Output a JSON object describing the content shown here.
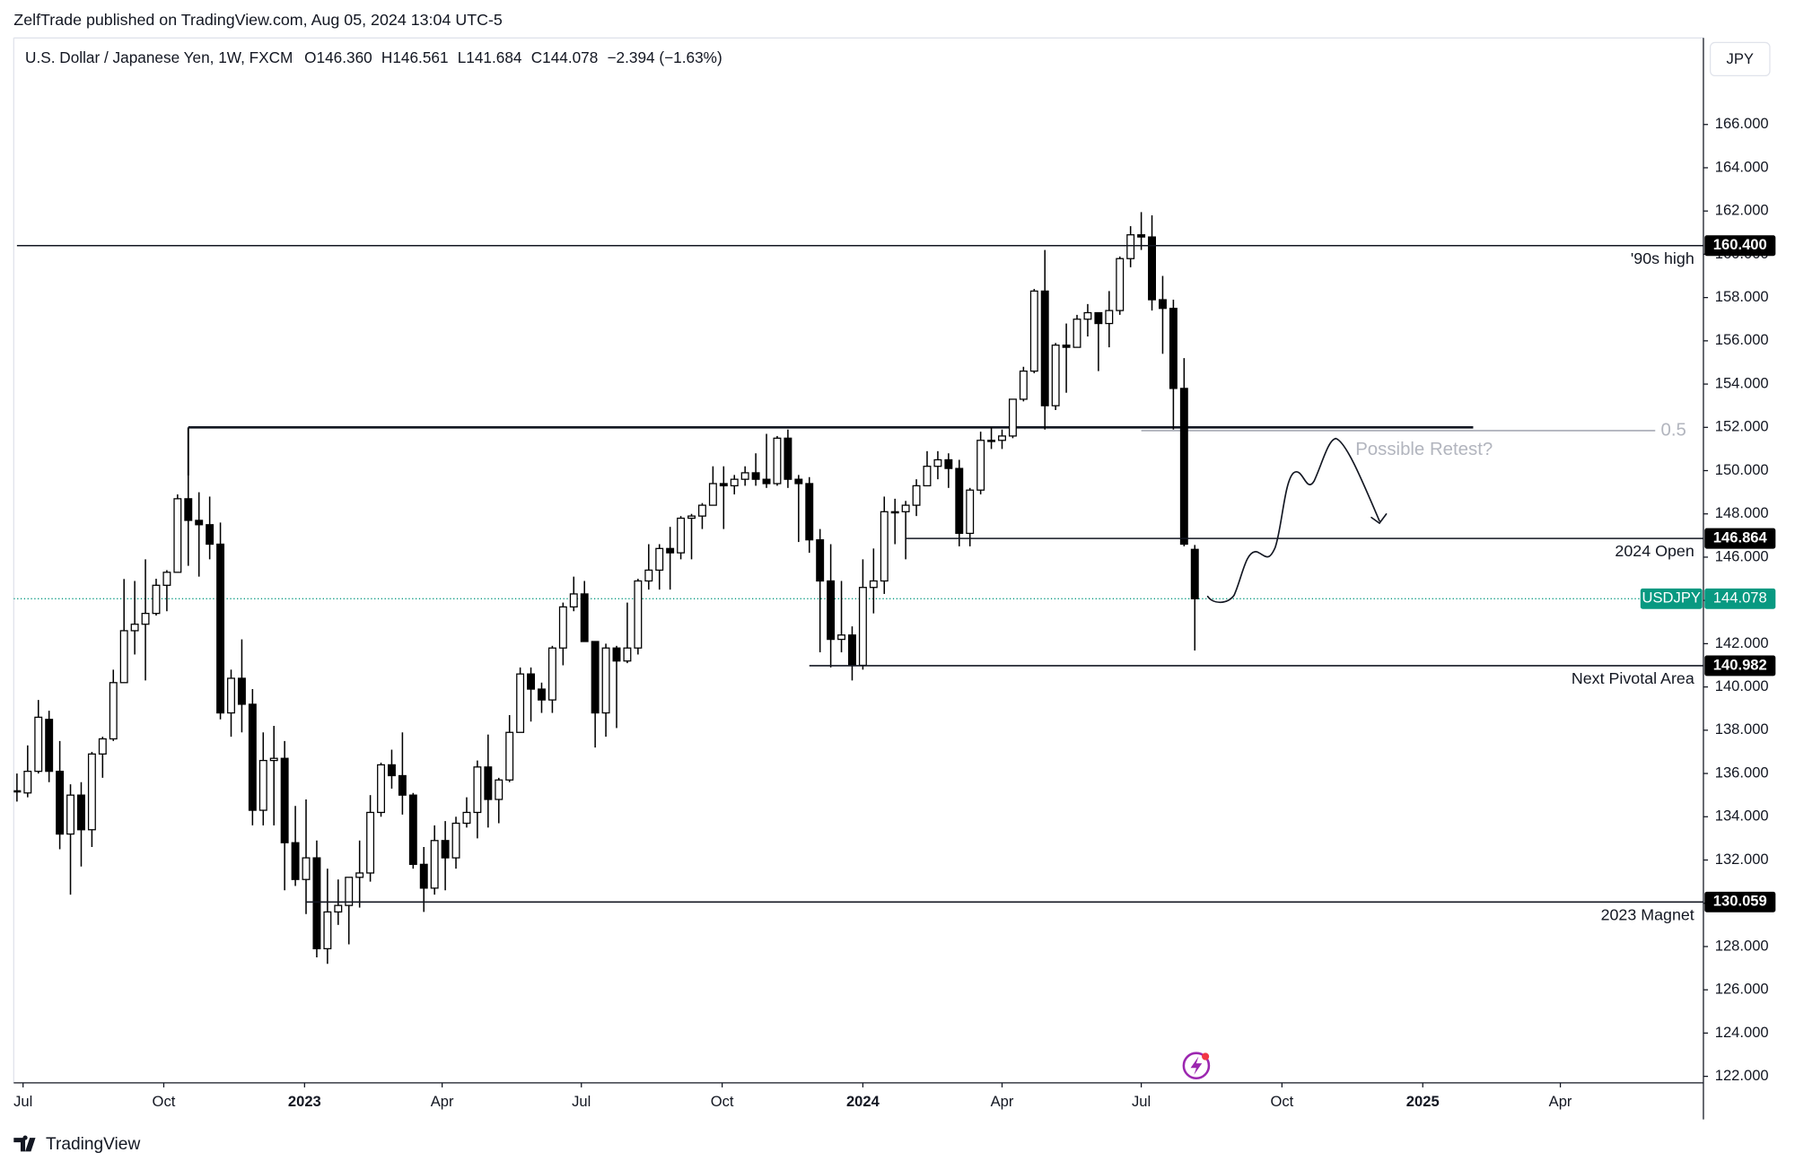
{
  "header": "ZelfTrade published on TradingView.com, Aug 05, 2024 13:04 UTC-5",
  "brand": "TradingView",
  "chart_data": {
    "type": "candlestick",
    "legend": {
      "symbol": "U.S. Dollar / Japanese Yen, 1W, FXCM",
      "items": [
        "O146.360",
        "H146.561",
        "L141.684",
        "C144.078",
        "−2.394 (−1.63%)"
      ]
    },
    "currency": "JPY",
    "up_color": "#ffffff",
    "down_color": "#000000",
    "wick_color": "#000000",
    "ohlc": {
      "open": [
        135.2,
        135.1,
        136.1,
        138.5,
        136.1,
        133.2,
        135.0,
        133.4,
        136.9,
        137.6,
        140.2,
        142.6,
        142.9,
        143.4,
        144.7,
        145.3,
        148.7,
        147.7,
        147.5,
        146.6,
        138.8,
        140.4,
        139.2,
        134.3,
        136.6,
        136.7,
        132.8,
        131.1,
        132.1,
        127.9,
        129.6,
        129.9,
        131.2,
        131.4,
        134.2,
        136.4,
        135.9,
        135.0,
        131.8,
        130.7,
        132.9,
        132.1,
        133.7,
        134.2,
        136.3,
        134.8,
        135.7,
        137.9,
        140.6,
        139.9,
        139.4,
        141.8,
        143.7,
        144.3,
        142.1,
        138.8,
        141.8,
        141.2,
        141.8,
        144.9,
        145.4,
        146.4,
        146.2,
        147.8,
        147.9,
        148.4,
        149.4,
        149.3,
        149.6,
        149.9,
        149.6,
        149.4,
        151.5,
        149.6,
        149.4,
        146.8,
        144.9,
        142.2,
        142.4,
        141.0,
        144.6,
        144.9,
        148.1,
        148.1,
        148.4,
        149.3,
        150.2,
        150.5,
        150.1,
        147.1,
        149.1,
        151.4,
        151.4,
        151.6,
        153.3,
        154.6,
        158.3,
        153.0,
        155.8,
        155.7,
        157.0,
        157.3,
        156.8,
        157.4,
        159.8,
        160.9,
        160.8,
        157.9,
        157.5,
        153.8,
        146.36
      ],
      "high": [
        136.0,
        137.3,
        139.4,
        138.9,
        137.5,
        135.5,
        135.6,
        137.0,
        137.7,
        140.8,
        144.99,
        144.9,
        145.9,
        145.0,
        145.4,
        148.9,
        151.95,
        149.0,
        148.8,
        147.6,
        140.8,
        142.2,
        139.9,
        137.9,
        138.2,
        137.5,
        134.5,
        134.8,
        132.9,
        131.6,
        131.1,
        131.2,
        132.9,
        135.0,
        136.5,
        137.1,
        137.9,
        135.1,
        132.6,
        133.6,
        133.8,
        134.0,
        134.9,
        136.6,
        137.8,
        135.8,
        138.7,
        140.9,
        140.9,
        140.2,
        141.9,
        143.9,
        145.1,
        144.9,
        142.1,
        142.0,
        141.9,
        143.9,
        145.0,
        146.6,
        146.6,
        147.4,
        147.9,
        148.0,
        148.5,
        150.2,
        150.2,
        149.8,
        150.2,
        150.8,
        151.7,
        151.6,
        151.9,
        149.8,
        149.7,
        147.3,
        146.6,
        144.9,
        142.8,
        145.9,
        146.4,
        148.8,
        148.7,
        148.6,
        149.6,
        150.9,
        150.9,
        150.8,
        150.5,
        149.2,
        151.8,
        152.0,
        151.9,
        153.3,
        154.8,
        158.4,
        160.2,
        155.9,
        156.8,
        157.2,
        157.7,
        157.3,
        158.3,
        159.9,
        161.3,
        161.95,
        161.8,
        159.0,
        157.9,
        155.2,
        146.561
      ],
      "low": [
        134.7,
        134.9,
        136.0,
        135.6,
        132.5,
        130.4,
        131.7,
        132.6,
        135.8,
        137.5,
        140.2,
        141.5,
        140.3,
        143.3,
        143.5,
        145.3,
        145.6,
        145.1,
        145.9,
        138.5,
        137.7,
        137.9,
        133.6,
        133.6,
        133.6,
        130.6,
        130.8,
        129.5,
        127.5,
        127.2,
        129.0,
        128.1,
        129.8,
        131.0,
        134.0,
        135.3,
        134.1,
        131.6,
        129.6,
        130.4,
        130.6,
        131.6,
        133.5,
        133.0,
        133.5,
        133.7,
        135.6,
        137.9,
        138.4,
        138.8,
        138.8,
        141.0,
        143.5,
        142.1,
        137.2,
        137.7,
        138.1,
        141.1,
        141.5,
        144.5,
        144.5,
        144.5,
        145.9,
        145.9,
        147.3,
        148.4,
        147.3,
        148.9,
        149.3,
        149.3,
        149.2,
        149.3,
        149.2,
        146.7,
        146.2,
        141.6,
        140.9,
        141.6,
        140.3,
        140.8,
        143.4,
        144.3,
        146.6,
        145.9,
        147.9,
        149.3,
        149.6,
        149.2,
        146.5,
        146.5,
        148.9,
        151.0,
        151.0,
        151.5,
        153.2,
        154.5,
        151.9,
        152.8,
        153.6,
        155.7,
        156.2,
        154.6,
        155.7,
        157.2,
        159.4,
        160.2,
        157.4,
        155.4,
        151.9,
        146.5,
        141.684
      ],
      "close": [
        135.2,
        136.1,
        138.6,
        136.1,
        133.2,
        135.0,
        133.4,
        136.9,
        137.6,
        140.2,
        142.6,
        142.9,
        143.4,
        144.7,
        145.3,
        148.7,
        147.7,
        147.5,
        146.6,
        138.8,
        140.4,
        139.2,
        134.3,
        136.6,
        136.7,
        132.8,
        131.1,
        132.1,
        127.9,
        129.6,
        129.9,
        131.2,
        131.4,
        134.2,
        136.4,
        135.9,
        135.0,
        131.8,
        130.7,
        132.9,
        132.1,
        133.7,
        134.2,
        136.3,
        134.8,
        135.7,
        137.9,
        140.6,
        139.9,
        139.4,
        141.8,
        143.7,
        144.3,
        142.1,
        138.8,
        141.8,
        141.2,
        141.8,
        144.9,
        145.4,
        146.4,
        146.2,
        147.8,
        147.9,
        148.4,
        149.4,
        149.3,
        149.6,
        149.9,
        149.6,
        149.4,
        151.5,
        149.6,
        149.4,
        146.8,
        144.9,
        142.2,
        142.4,
        141.0,
        144.6,
        144.9,
        148.1,
        148.1,
        148.4,
        149.3,
        150.2,
        150.5,
        150.1,
        147.1,
        149.1,
        151.4,
        151.4,
        151.6,
        153.3,
        154.6,
        158.3,
        153.0,
        155.8,
        155.7,
        157.0,
        157.3,
        156.8,
        157.4,
        159.8,
        160.9,
        160.8,
        157.9,
        157.5,
        153.8,
        146.6,
        144.078
      ]
    },
    "xlim": [
      -0.3,
      157.5
    ],
    "xticks": [
      {
        "value": 0.57,
        "label": "Jul"
      },
      {
        "value": 13.71,
        "label": "Oct"
      },
      {
        "value": 26.86,
        "label": "2023"
      },
      {
        "value": 39.71,
        "label": "Apr"
      },
      {
        "value": 52.71,
        "label": "Jul"
      },
      {
        "value": 65.86,
        "label": "Oct"
      },
      {
        "value": 79,
        "label": "2024"
      },
      {
        "value": 92,
        "label": "Apr"
      },
      {
        "value": 105,
        "label": "Jul"
      },
      {
        "value": 118.14,
        "label": "Oct"
      },
      {
        "value": 131.29,
        "label": "2025"
      },
      {
        "value": 144.14,
        "label": "Apr"
      }
    ],
    "ylim": [
      121.7,
      170.0
    ],
    "yticks": [
      {
        "value": 122,
        "label": "122.000"
      },
      {
        "value": 124,
        "label": "124.000"
      },
      {
        "value": 126,
        "label": "126.000"
      },
      {
        "value": 128,
        "label": "128.000"
      },
      {
        "value": 130,
        "label": "130.000"
      },
      {
        "value": 132,
        "label": "132.000"
      },
      {
        "value": 134,
        "label": "134.000"
      },
      {
        "value": 136,
        "label": "136.000"
      },
      {
        "value": 138,
        "label": "138.000"
      },
      {
        "value": 140,
        "label": "140.000"
      },
      {
        "value": 142,
        "label": "142.000"
      },
      {
        "value": 144,
        "label": "144.000"
      },
      {
        "value": 146,
        "label": "146.000"
      },
      {
        "value": 148,
        "label": "148.000"
      },
      {
        "value": 150,
        "label": "150.000"
      },
      {
        "value": 152,
        "label": "152.000"
      },
      {
        "value": 154,
        "label": "154.000"
      },
      {
        "value": 156,
        "label": "156.000"
      },
      {
        "value": 158,
        "label": "158.000"
      },
      {
        "value": 160,
        "label": "160.000"
      },
      {
        "value": 162,
        "label": "162.000"
      },
      {
        "value": 164,
        "label": "164.000"
      },
      {
        "value": 166,
        "label": "166.000"
      }
    ],
    "grid": false,
    "levels": [
      {
        "value": 160.4,
        "label": "160.400",
        "text": "'90s high",
        "from": 0
      },
      {
        "value": 146.864,
        "label": "146.864",
        "text": "2024 Open",
        "from": 83
      },
      {
        "value": 140.982,
        "label": "140.982",
        "text": "Next Pivotal Area",
        "from": 74
      },
      {
        "value": 130.059,
        "label": "130.059",
        "text": "2023 Magnet",
        "from": 27
      }
    ],
    "resistance": {
      "value": 152,
      "from": 16,
      "to": 136
    },
    "fib": {
      "label": "0.5",
      "value": 151.85,
      "from": 105,
      "to": 153,
      "color": "#b2b5be"
    },
    "last": {
      "value": 144.078,
      "label": "144.078",
      "symbol": "USDJPY",
      "color": "#089981"
    },
    "annotation": {
      "text": "Possible Retest?",
      "color": "#b2b5be"
    }
  }
}
